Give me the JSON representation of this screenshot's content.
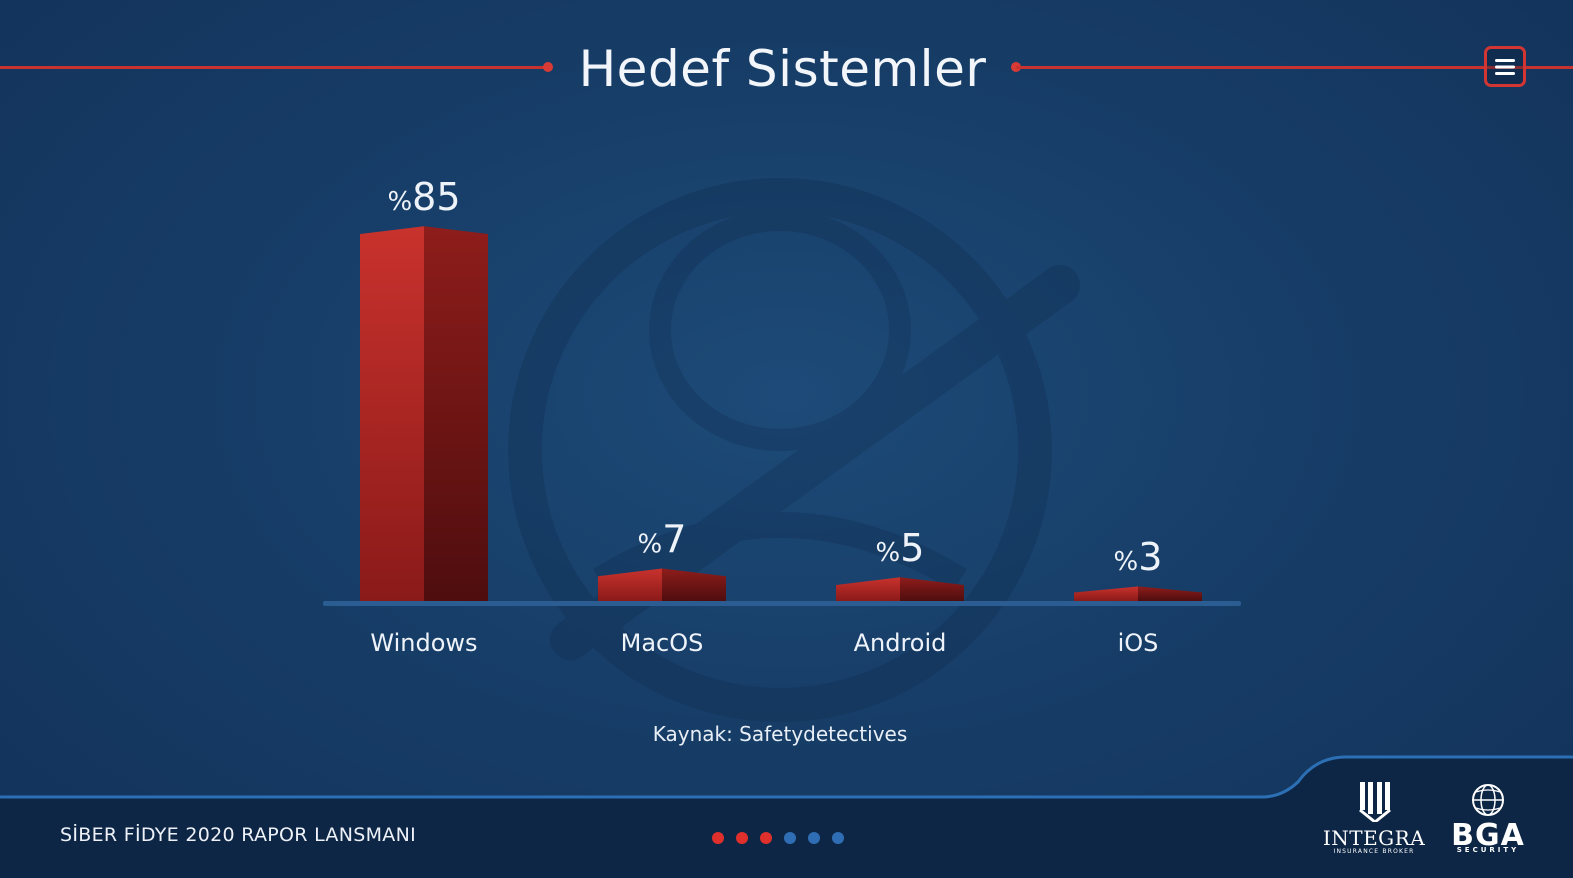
{
  "header": {
    "title": "Hedef Sistemler"
  },
  "menu": {
    "icon": "hamburger-icon"
  },
  "chart_data": {
    "type": "bar",
    "title": "Hedef Sistemler",
    "categories": [
      "Windows",
      "MacOS",
      "Android",
      "iOS"
    ],
    "values": [
      85,
      7,
      5,
      3
    ],
    "value_labels": [
      {
        "prefix": "%",
        "number": "85"
      },
      {
        "prefix": "%",
        "number": "7"
      },
      {
        "prefix": "%",
        "number": "5"
      },
      {
        "prefix": "%",
        "number": "3"
      }
    ],
    "value_unit": "percent",
    "ylim": [
      0,
      85
    ],
    "grid": false,
    "legend": "none",
    "bar_color": "#c2302c"
  },
  "source": "Kaynak: Safetydetectives",
  "footer": {
    "text": "SİBER FİDYE 2020 RAPOR LANSMANI",
    "pagination": {
      "total": 6,
      "current": 3,
      "active_color": "#e0302c",
      "inactive_color": "#2f6eb5"
    }
  },
  "logos": {
    "integra": {
      "name": "INTEGRA",
      "tagline": "INSURANCE BROKER"
    },
    "bga": {
      "name": "BGA",
      "tagline": "SECURITY"
    }
  },
  "colors": {
    "accent": "#c8332f",
    "background": "#173e68"
  }
}
